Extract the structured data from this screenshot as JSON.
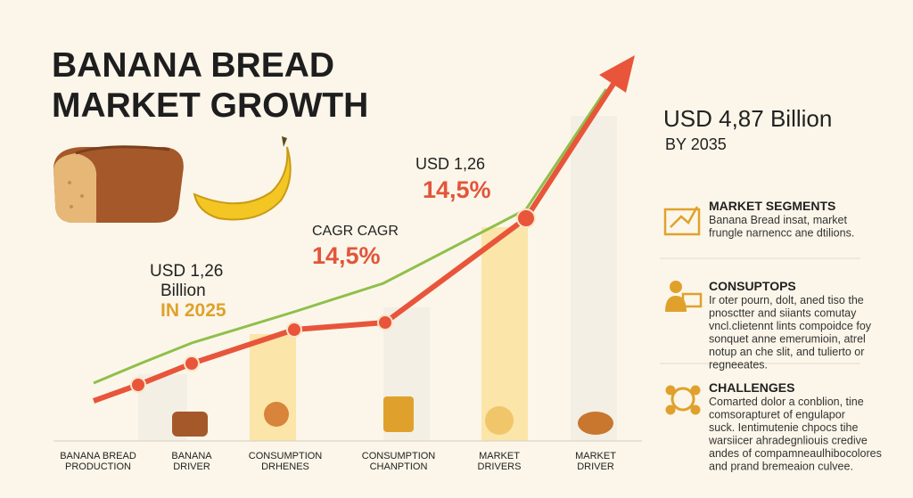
{
  "header": {
    "title_lines": [
      "BANANA BREAD",
      "MARKET GROWTH"
    ]
  },
  "annotations": {
    "first": {
      "lines": [
        "USD 1,26",
        "Billion"
      ],
      "year": "IN 2025"
    },
    "second": {
      "label": "CAGR CAGR",
      "rate": "14,5%"
    },
    "third": {
      "label": "USD 1,26",
      "rate": "14,5%"
    }
  },
  "forecast": {
    "value": "USD 4,87 Billion",
    "year": "BY 2035"
  },
  "sections": [
    {
      "heading": "MARKET SEGMENTS",
      "lines": [
        "Banana Bread insat, market",
        "frungle narnencc ane dtilions."
      ]
    },
    {
      "heading": "CONSUPTOPS",
      "lines": [
        "Ir oter pourn, dolt, aned tiso the",
        "pnosctter and siiants comutay",
        "vncl.clietennt lints compoidce foy",
        "sonquet anne emerumioin, atrel",
        "notup an che slit, and tulierto or",
        "regneeates."
      ]
    },
    {
      "heading": "CHALLENGES",
      "lines": [
        "Comarted dolor a conblion, tine",
        "comsorapturet of engulapor",
        "suck. Ientimutenie chpocs tihe",
        "warsiicer ahradegnliouis credive",
        "andes of compamneaulhibocolores",
        "and prand bremeaion culvee."
      ]
    }
  ],
  "footer_labels": [
    [
      "BANANA BREAD",
      "PRODUCTION"
    ],
    [
      "BANANA",
      "DRIVER"
    ],
    [
      "CONSUMPTION",
      "DRHENES"
    ],
    [
      "CONSUMPTION",
      "CHANPTION"
    ],
    [
      "MARKET",
      "DRIVERS"
    ],
    [
      "MARKET",
      "DRIVER"
    ]
  ]
}
